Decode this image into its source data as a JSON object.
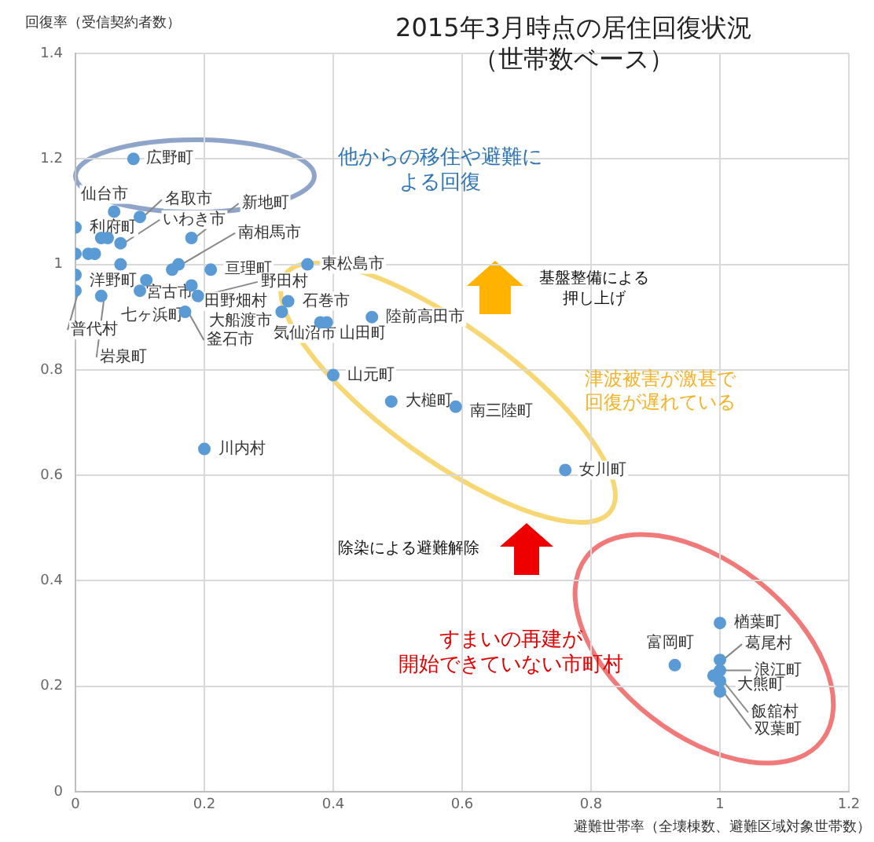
{
  "chart_data": {
    "type": "scatter",
    "title": "2015年3月時点の居住回復状況（世帯数ベース）",
    "xlabel": "避難世帯率（全壊棟数、避難区域対象世帯数）",
    "ylabel": "回復率（受信契約者数）",
    "x": [
      0.09,
      0.06,
      0.1,
      0.07,
      0.18,
      0.16,
      0.0,
      0.36,
      0.21,
      0.0,
      0.11,
      0.18,
      0.19,
      0.33,
      0.32,
      0.0,
      0.04,
      0.1,
      0.17,
      0.38,
      0.39,
      0.46,
      0.4,
      0.49,
      0.59,
      0.2,
      0.76,
      1.0,
      0.93,
      1.0,
      1.0,
      0.99,
      1.0,
      1.0,
      0.0,
      0.02,
      0.03,
      0.04,
      0.05,
      0.07,
      0.15
    ],
    "series": [
      {
        "color": "#5b9bd5",
        "values": [
          1.2,
          1.1,
          1.09,
          1.04,
          1.05,
          1.0,
          1.07,
          1.0,
          0.99,
          0.98,
          0.97,
          0.96,
          0.94,
          0.93,
          0.91,
          0.95,
          0.94,
          0.95,
          0.91,
          0.89,
          0.89,
          0.9,
          0.79,
          0.74,
          0.73,
          0.65,
          0.61,
          0.32,
          0.24,
          0.25,
          0.23,
          0.22,
          0.21,
          0.19,
          1.02,
          1.02,
          1.02,
          1.05,
          1.05,
          1.0,
          0.99
        ]
      }
    ],
    "xlim": [
      0,
      1.2
    ],
    "ylim": [
      0,
      1.4
    ],
    "xticks": [
      0,
      0.2,
      0.4,
      0.6,
      0.8,
      1,
      1.2
    ],
    "yticks": [
      0,
      0.2,
      0.4,
      0.6,
      0.8,
      1,
      1.2,
      1.4
    ],
    "grid": true,
    "marker": "circle",
    "annotations": [
      {
        "text": "広野町",
        "x": 0.09,
        "y": 1.2
      },
      {
        "text": "仙台市",
        "x": 0.06,
        "y": 1.1
      },
      {
        "text": "名取市",
        "x": 0.1,
        "y": 1.09
      },
      {
        "text": "いわき市",
        "x": 0.07,
        "y": 1.04
      },
      {
        "text": "新地町",
        "x": 0.18,
        "y": 1.05
      },
      {
        "text": "南相馬市",
        "x": 0.16,
        "y": 1.0
      },
      {
        "text": "利府町",
        "x": 0.0,
        "y": 1.07
      },
      {
        "text": "東松島市",
        "x": 0.36,
        "y": 1.0
      },
      {
        "text": "亘理町",
        "x": 0.21,
        "y": 0.99
      },
      {
        "text": "洋野町",
        "x": 0.0,
        "y": 0.98
      },
      {
        "text": "宮古市",
        "x": 0.11,
        "y": 0.97
      },
      {
        "text": "田野畑村",
        "x": 0.18,
        "y": 0.96
      },
      {
        "text": "野田村",
        "x": 0.19,
        "y": 0.94
      },
      {
        "text": "石巻市",
        "x": 0.33,
        "y": 0.93
      },
      {
        "text": "大船渡市",
        "x": 0.32,
        "y": 0.91
      },
      {
        "text": "普代村",
        "x": 0.0,
        "y": 0.95
      },
      {
        "text": "岩泉町",
        "x": 0.04,
        "y": 0.94
      },
      {
        "text": "七ヶ浜町",
        "x": 0.1,
        "y": 0.95
      },
      {
        "text": "釜石市",
        "x": 0.17,
        "y": 0.91
      },
      {
        "text": "気仙沼市",
        "x": 0.38,
        "y": 0.89
      },
      {
        "text": "山田町",
        "x": 0.39,
        "y": 0.89
      },
      {
        "text": "陸前高田市",
        "x": 0.46,
        "y": 0.9
      },
      {
        "text": "山元町",
        "x": 0.4,
        "y": 0.79
      },
      {
        "text": "大槌町",
        "x": 0.49,
        "y": 0.74
      },
      {
        "text": "南三陸町",
        "x": 0.59,
        "y": 0.73
      },
      {
        "text": "川内村",
        "x": 0.2,
        "y": 0.65
      },
      {
        "text": "女川町",
        "x": 0.76,
        "y": 0.61
      },
      {
        "text": "楢葉町",
        "x": 1.0,
        "y": 0.32
      },
      {
        "text": "富岡町",
        "x": 0.93,
        "y": 0.24
      },
      {
        "text": "葛尾村",
        "x": 1.0,
        "y": 0.25
      },
      {
        "text": "浪江町",
        "x": 1.0,
        "y": 0.23
      },
      {
        "text": "大熊町",
        "x": 0.99,
        "y": 0.22
      },
      {
        "text": "飯舘村",
        "x": 1.0,
        "y": 0.21
      },
      {
        "text": "双葉町",
        "x": 1.0,
        "y": 0.19
      },
      "他からの移住や避難による回復",
      "基盤整備による押し上げ",
      "津波被害が激甚で回復が遅れている",
      "除染による避難解除",
      "すまいの再建が開始できていない市町村"
    ]
  }
}
